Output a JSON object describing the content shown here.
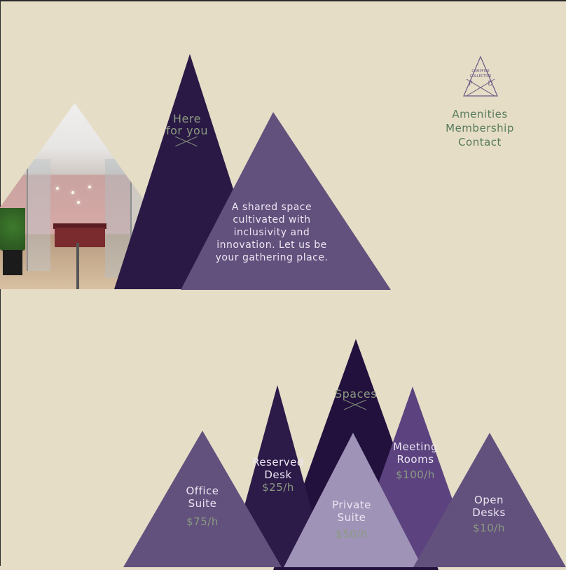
{
  "brand": {
    "logo_text_line1": "CAMPFIRE",
    "logo_text_line2": "COLLECTIVE",
    "logo_letter_left": "P",
    "logo_letter_right": "D"
  },
  "nav": {
    "items": [
      "Amenities",
      "Membership",
      "Contact"
    ]
  },
  "hero": {
    "tag_line1": "Here",
    "tag_line2": "for you",
    "intro": "A shared space cultivated with inclusivity and innovation. Let us be your gathering place."
  },
  "spaces": {
    "title": "Spaces",
    "office": {
      "label_line1": "Office",
      "label_line2": "Suite",
      "price": "$75/h"
    },
    "reserved": {
      "label_line1": "Reserved",
      "label_line2": "Desk",
      "price": "$25/h"
    },
    "private": {
      "label_line1": "Private",
      "label_line2": "Suite",
      "price": "$50/h"
    },
    "meeting": {
      "label_line1": "Meeting",
      "label_line2": "Rooms",
      "price": "$100/h"
    },
    "open": {
      "label_line1": "Open",
      "label_line2": "Desks",
      "price": "$10/h"
    }
  },
  "colors": {
    "background": "#e5ddc6",
    "dark_purple": "#2a1945",
    "mid_purple": "#62507d",
    "light_purple": "#a093b8",
    "sage_green": "#8a9b81",
    "nav_green": "#587b5c"
  }
}
